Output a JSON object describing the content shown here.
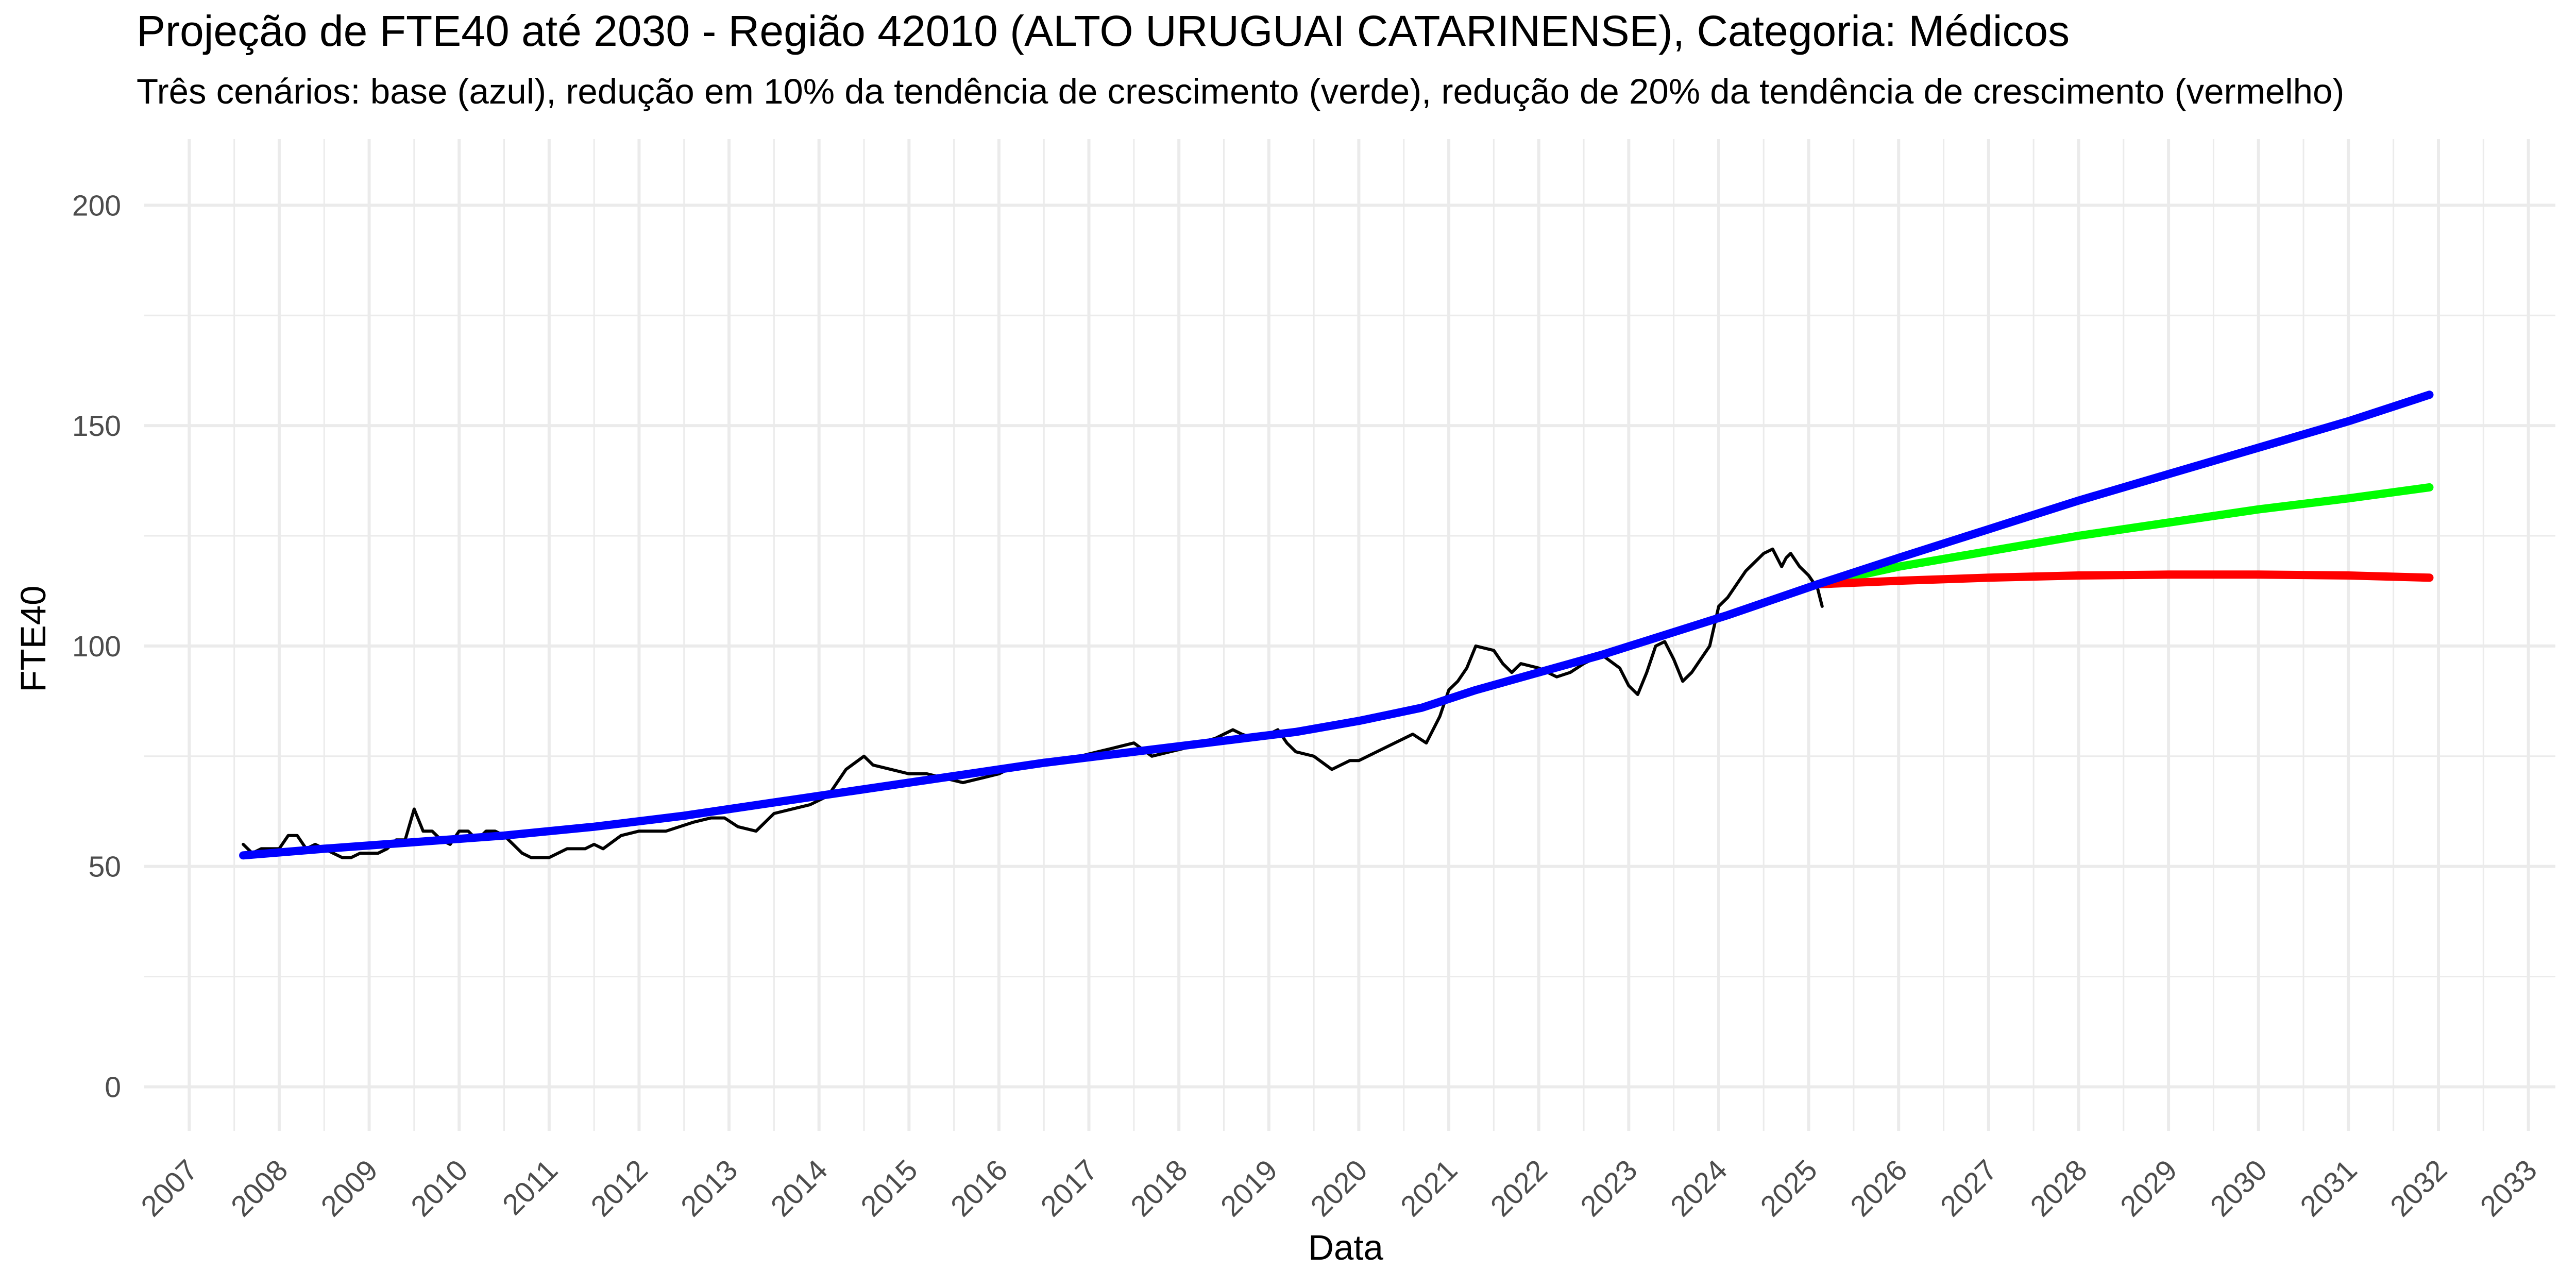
{
  "chart_data": {
    "type": "line",
    "title": "Projeção de FTE40 até 2030 - Região 42010 (ALTO URUGUAI CATARINENSE), Categoria: Médicos",
    "subtitle": "Três cenários: base (azul), redução em 10% da tendência de crescimento (verde), redução de 20% da tendência de crescimento (vermelho)",
    "xlabel": "Data",
    "ylabel": "FTE40",
    "xlim": [
      2006.5,
      2033.3
    ],
    "ylim": [
      -10,
      215
    ],
    "x_ticks": [
      "2007",
      "2008",
      "2009",
      "2010",
      "2011",
      "2012",
      "2013",
      "2014",
      "2015",
      "2016",
      "2017",
      "2018",
      "2019",
      "2020",
      "2021",
      "2022",
      "2023",
      "2024",
      "2025",
      "2026",
      "2027",
      "2028",
      "2029",
      "2030",
      "2031",
      "2032",
      "2033"
    ],
    "y_ticks": [
      0,
      50,
      100,
      150,
      200
    ],
    "grid": true,
    "legend": "none",
    "colors": {
      "observed": "#000000",
      "base": "#0000ff",
      "verde": "#00ff00",
      "vermelho": "#ff0000",
      "grid": "#ebebeb"
    },
    "series": [
      {
        "key": "observed",
        "x": [
          2007.6,
          2007.7,
          2007.8,
          2007.9,
          2008.0,
          2008.1,
          2008.2,
          2008.3,
          2008.4,
          2008.5,
          2008.6,
          2008.7,
          2008.8,
          2008.9,
          2009.0,
          2009.1,
          2009.2,
          2009.3,
          2009.4,
          2009.5,
          2009.6,
          2009.7,
          2009.8,
          2009.9,
          2010.0,
          2010.1,
          2010.2,
          2010.3,
          2010.4,
          2010.5,
          2010.6,
          2010.7,
          2010.8,
          2010.9,
          2011.0,
          2011.2,
          2011.4,
          2011.5,
          2011.6,
          2011.8,
          2012.0,
          2012.3,
          2012.6,
          2012.8,
          2012.95,
          2013.1,
          2013.3,
          2013.5,
          2013.7,
          2013.9,
          2014.1,
          2014.3,
          2014.5,
          2014.6,
          2014.8,
          2015.0,
          2015.2,
          2015.4,
          2015.6,
          2015.8,
          2016.0,
          2016.1,
          2016.3,
          2016.5,
          2016.7,
          2016.9,
          2017.1,
          2017.3,
          2017.5,
          2017.7,
          2017.9,
          2018.1,
          2018.2,
          2018.4,
          2018.5,
          2018.6,
          2018.7,
          2018.85,
          2019.0,
          2019.1,
          2019.2,
          2019.3,
          2019.5,
          2019.7,
          2019.9,
          2020.0,
          2020.2,
          2020.4,
          2020.6,
          2020.75,
          2020.9,
          2021.0,
          2021.1,
          2021.2,
          2021.3,
          2021.5,
          2021.6,
          2021.7,
          2021.8,
          2022.0,
          2022.2,
          2022.35,
          2022.5,
          2022.7,
          2022.9,
          2023.0,
          2023.1,
          2023.2,
          2023.3,
          2023.4,
          2023.5,
          2023.6,
          2023.7,
          2023.8,
          2023.9,
          2024.0,
          2024.1,
          2024.2,
          2024.3,
          2024.4,
          2024.5,
          2024.6,
          2024.7,
          2024.75,
          2024.8,
          2024.9,
          2025.0,
          2025.1,
          2025.15
        ],
        "y": [
          55,
          53,
          54,
          54,
          54,
          57,
          57,
          54,
          55,
          54,
          53,
          52,
          52,
          53,
          53,
          53,
          54,
          56,
          56,
          63,
          58,
          58,
          56,
          55,
          58,
          58,
          56,
          58,
          58,
          57,
          55,
          53,
          52,
          52,
          52,
          54,
          54,
          55,
          54,
          57,
          58,
          58,
          60,
          61,
          61,
          59,
          58,
          62,
          63,
          64,
          66,
          72,
          75,
          73,
          72,
          71,
          71,
          70,
          69,
          70,
          71,
          72,
          73,
          73,
          74,
          75,
          76,
          77,
          78,
          75,
          76,
          77,
          78,
          79,
          80,
          81,
          80,
          79,
          80,
          81,
          78,
          76,
          75,
          72,
          74,
          74,
          76,
          78,
          80,
          78,
          84,
          90,
          92,
          95,
          100,
          99,
          96,
          94,
          96,
          95,
          93,
          94,
          96,
          98,
          95,
          91,
          89,
          94,
          100,
          101,
          97,
          92,
          94,
          97,
          100,
          109,
          111,
          114,
          117,
          119,
          121,
          122,
          118,
          120,
          121,
          118,
          116,
          113,
          109
        ]
      },
      {
        "key": "base",
        "x": [
          2007.6,
          2008.5,
          2009.5,
          2010.5,
          2011.5,
          2012.5,
          2013.5,
          2014.5,
          2015.5,
          2016.5,
          2017.5,
          2018.5,
          2019.3,
          2020.0,
          2020.7,
          2021.3,
          2022.0,
          2022.7,
          2023.4,
          2024.1,
          2025.1,
          2026.0,
          2027.0,
          2028.0,
          2029.0,
          2030.0,
          2031.0,
          2031.9
        ],
        "y": [
          52.5,
          54,
          55.5,
          57,
          59,
          61.5,
          64.5,
          67.5,
          70.5,
          73.5,
          76,
          78.5,
          80.5,
          83,
          86,
          90,
          94,
          98,
          102.5,
          107,
          114,
          120,
          126.5,
          133,
          139,
          145,
          151,
          157
        ]
      },
      {
        "key": "verde",
        "x": [
          2025.1,
          2026.0,
          2027.0,
          2028.0,
          2029.0,
          2030.0,
          2031.0,
          2031.9
        ],
        "y": [
          114,
          118,
          121.5,
          125,
          128,
          131,
          133.5,
          136
        ]
      },
      {
        "key": "vermelho",
        "x": [
          2025.1,
          2026.0,
          2027.0,
          2028.0,
          2029.0,
          2030.0,
          2031.0,
          2031.9
        ],
        "y": [
          114,
          114.8,
          115.5,
          116,
          116.2,
          116.2,
          116,
          115.5
        ]
      }
    ]
  }
}
